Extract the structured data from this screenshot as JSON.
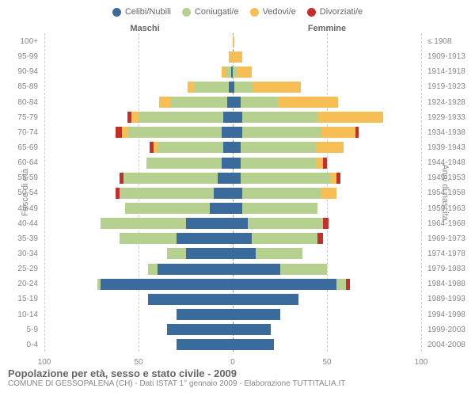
{
  "legend": [
    {
      "label": "Celibi/Nubili",
      "color": "#3b6a9c"
    },
    {
      "label": "Coniugati/e",
      "color": "#b6d090"
    },
    {
      "label": "Vedovi/e",
      "color": "#f6be54"
    },
    {
      "label": "Divorziati/e",
      "color": "#c22f2c"
    }
  ],
  "headers": {
    "male": "Maschi",
    "female": "Femmine"
  },
  "axis": {
    "left_title": "Fasce di età",
    "right_title": "Anni di nascita",
    "xmax": 100,
    "xticks": [
      100,
      50,
      0,
      50,
      100
    ]
  },
  "colors": {
    "grid": "#cccccc",
    "text": "#888888",
    "bg": "#ffffff"
  },
  "caption": {
    "title": "Popolazione per età, sesso e stato civile - 2009",
    "sub": "COMUNE DI GESSOPALENA (CH) - Dati ISTAT 1° gennaio 2009 - Elaborazione TUTTITALIA.IT"
  },
  "rows": [
    {
      "age": "100+",
      "birth": "≤ 1908",
      "m": {
        "c": 0,
        "m": 0,
        "w": 0,
        "d": 0
      },
      "f": {
        "c": 0,
        "m": 0,
        "w": 1,
        "d": 0
      }
    },
    {
      "age": "95-99",
      "birth": "1909-1913",
      "m": {
        "c": 0,
        "m": 0,
        "w": 2,
        "d": 0
      },
      "f": {
        "c": 0,
        "m": 0,
        "w": 5,
        "d": 0
      }
    },
    {
      "age": "90-94",
      "birth": "1914-1918",
      "m": {
        "c": 1,
        "m": 3,
        "w": 2,
        "d": 0
      },
      "f": {
        "c": 0,
        "m": 2,
        "w": 8,
        "d": 0
      }
    },
    {
      "age": "85-89",
      "birth": "1919-1923",
      "m": {
        "c": 2,
        "m": 18,
        "w": 4,
        "d": 0
      },
      "f": {
        "c": 1,
        "m": 10,
        "w": 25,
        "d": 0
      }
    },
    {
      "age": "80-84",
      "birth": "1924-1928",
      "m": {
        "c": 3,
        "m": 30,
        "w": 6,
        "d": 0
      },
      "f": {
        "c": 4,
        "m": 20,
        "w": 32,
        "d": 0
      }
    },
    {
      "age": "75-79",
      "birth": "1929-1933",
      "m": {
        "c": 5,
        "m": 45,
        "w": 4,
        "d": 2
      },
      "f": {
        "c": 5,
        "m": 40,
        "w": 35,
        "d": 0
      }
    },
    {
      "age": "70-74",
      "birth": "1934-1938",
      "m": {
        "c": 6,
        "m": 50,
        "w": 3,
        "d": 3
      },
      "f": {
        "c": 5,
        "m": 42,
        "w": 18,
        "d": 2
      }
    },
    {
      "age": "65-69",
      "birth": "1939-1943",
      "m": {
        "c": 5,
        "m": 35,
        "w": 2,
        "d": 2
      },
      "f": {
        "c": 4,
        "m": 40,
        "w": 15,
        "d": 0
      }
    },
    {
      "age": "60-64",
      "birth": "1944-1948",
      "m": {
        "c": 6,
        "m": 40,
        "w": 0,
        "d": 0
      },
      "f": {
        "c": 4,
        "m": 40,
        "w": 4,
        "d": 2
      }
    },
    {
      "age": "55-59",
      "birth": "1949-1953",
      "m": {
        "c": 8,
        "m": 50,
        "w": 0,
        "d": 2
      },
      "f": {
        "c": 4,
        "m": 48,
        "w": 3,
        "d": 2
      }
    },
    {
      "age": "50-54",
      "birth": "1954-1958",
      "m": {
        "c": 10,
        "m": 50,
        "w": 0,
        "d": 2
      },
      "f": {
        "c": 5,
        "m": 42,
        "w": 8,
        "d": 0
      }
    },
    {
      "age": "45-49",
      "birth": "1959-1963",
      "m": {
        "c": 12,
        "m": 45,
        "w": 0,
        "d": 0
      },
      "f": {
        "c": 5,
        "m": 40,
        "w": 0,
        "d": 0
      }
    },
    {
      "age": "40-44",
      "birth": "1964-1968",
      "m": {
        "c": 25,
        "m": 45,
        "w": 0,
        "d": 0
      },
      "f": {
        "c": 8,
        "m": 40,
        "w": 0,
        "d": 3
      }
    },
    {
      "age": "35-39",
      "birth": "1969-1973",
      "m": {
        "c": 30,
        "m": 30,
        "w": 0,
        "d": 0
      },
      "f": {
        "c": 10,
        "m": 35,
        "w": 0,
        "d": 3
      }
    },
    {
      "age": "30-34",
      "birth": "1974-1978",
      "m": {
        "c": 25,
        "m": 10,
        "w": 0,
        "d": 0
      },
      "f": {
        "c": 12,
        "m": 25,
        "w": 0,
        "d": 0
      }
    },
    {
      "age": "25-29",
      "birth": "1979-1983",
      "m": {
        "c": 40,
        "m": 5,
        "w": 0,
        "d": 0
      },
      "f": {
        "c": 25,
        "m": 25,
        "w": 0,
        "d": 0
      }
    },
    {
      "age": "20-24",
      "birth": "1984-1988",
      "m": {
        "c": 70,
        "m": 2,
        "w": 0,
        "d": 0
      },
      "f": {
        "c": 55,
        "m": 5,
        "w": 0,
        "d": 2
      }
    },
    {
      "age": "15-19",
      "birth": "1989-1993",
      "m": {
        "c": 45,
        "m": 0,
        "w": 0,
        "d": 0
      },
      "f": {
        "c": 35,
        "m": 0,
        "w": 0,
        "d": 0
      }
    },
    {
      "age": "10-14",
      "birth": "1994-1998",
      "m": {
        "c": 30,
        "m": 0,
        "w": 0,
        "d": 0
      },
      "f": {
        "c": 25,
        "m": 0,
        "w": 0,
        "d": 0
      }
    },
    {
      "age": "5-9",
      "birth": "1999-2003",
      "m": {
        "c": 35,
        "m": 0,
        "w": 0,
        "d": 0
      },
      "f": {
        "c": 20,
        "m": 0,
        "w": 0,
        "d": 0
      }
    },
    {
      "age": "0-4",
      "birth": "2004-2008",
      "m": {
        "c": 30,
        "m": 0,
        "w": 0,
        "d": 0
      },
      "f": {
        "c": 22,
        "m": 0,
        "w": 0,
        "d": 0
      }
    }
  ]
}
